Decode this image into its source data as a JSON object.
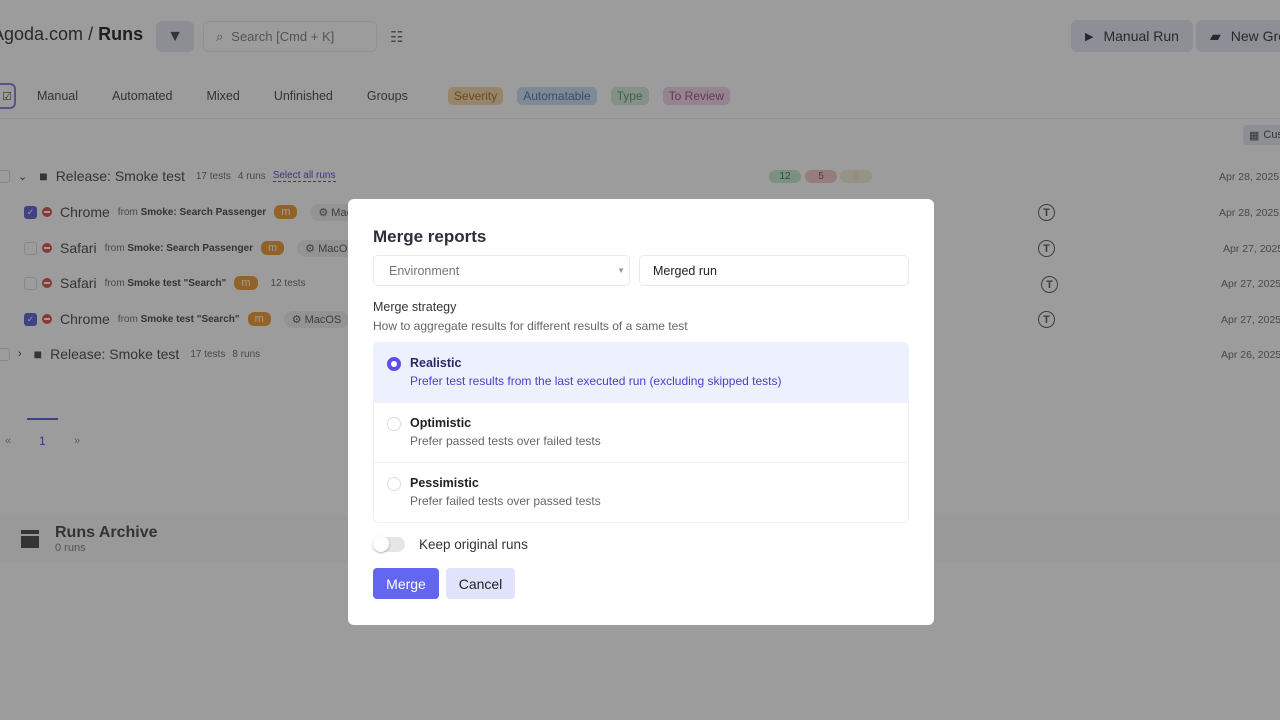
{
  "header": {
    "project": "Agoda.com",
    "separator": "/",
    "page": "Runs",
    "search_placeholder": "Search [Cmd + K]",
    "manual_run": "Manual Run",
    "new_group": "New Group"
  },
  "tabs": [
    "Manual",
    "Automated",
    "Mixed",
    "Unfinished",
    "Groups"
  ],
  "filter_pills": [
    {
      "label": "Severity",
      "color": "#f6d9b0"
    },
    {
      "label": "Automatable",
      "color": "#cfe0f6"
    },
    {
      "label": "Type",
      "color": "#d6eedd"
    },
    {
      "label": "To Review",
      "color": "#f3d6ea"
    }
  ],
  "customize": "Cus",
  "groups": [
    {
      "title": "Release: Smoke test",
      "tests": "17 tests",
      "runs": "4 runs",
      "select_all": "Select all runs",
      "counts": [
        "12",
        "5",
        "0"
      ],
      "date": "Apr 28, 2025"
    },
    {
      "title": "Release: Smoke test",
      "tests": "17 tests",
      "runs": "8 runs",
      "date": "Apr 26, 2025"
    }
  ],
  "runs": [
    {
      "browser": "Chrome",
      "from": "from",
      "source": "Smoke: Search Passenger",
      "badge": "m",
      "env": "MacOS",
      "checked": true,
      "date": "Apr 28, 2025"
    },
    {
      "browser": "Safari",
      "from": "from",
      "source": "Smoke: Search Passenger",
      "badge": "m",
      "env": "MacOS",
      "checked": false,
      "date": "Apr 27, 2025"
    },
    {
      "browser": "Safari",
      "from": "from",
      "source": "Smoke test \"Search\"",
      "badge": "m",
      "tests": "12 tests",
      "checked": false,
      "date": "Apr 27, 2025"
    },
    {
      "browser": "Chrome",
      "from": "from",
      "source": "Smoke test \"Search\"",
      "badge": "m",
      "env": "MacOS",
      "checked": true,
      "date": "Apr 27, 2025"
    }
  ],
  "pagination": {
    "prev": "«",
    "page": "1",
    "next": "»"
  },
  "archive": {
    "title": "Runs Archive",
    "count": "0 runs"
  },
  "modal": {
    "title": "Merge reports",
    "environment_placeholder": "Environment",
    "name_value": "Merged run",
    "strategy_label": "Merge strategy",
    "strategy_hint": "How to aggregate results for different results of a same test",
    "options": [
      {
        "title": "Realistic",
        "desc": "Prefer test results from the last executed run (excluding skipped tests)",
        "selected": true
      },
      {
        "title": "Optimistic",
        "desc": "Prefer passed tests over failed tests",
        "selected": false
      },
      {
        "title": "Pessimistic",
        "desc": "Prefer failed tests over passed tests",
        "selected": false
      }
    ],
    "keep_original": "Keep original runs",
    "keep_original_on": false,
    "merge": "Merge",
    "cancel": "Cancel"
  }
}
